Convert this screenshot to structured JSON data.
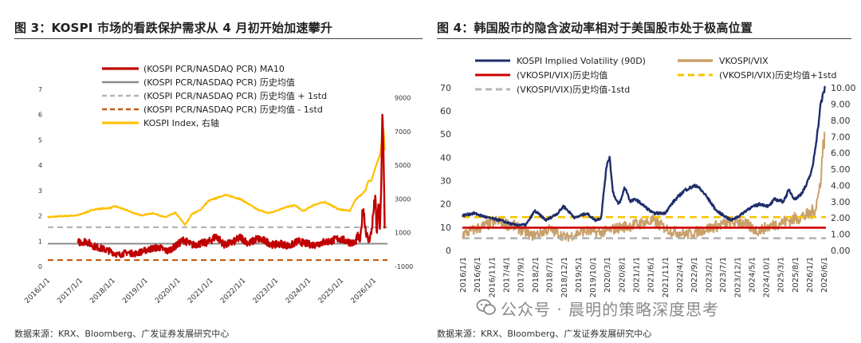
{
  "left": {
    "title": "图 3：KOSPI 市场的看跌保护需求从 4 月初开始加速攀升",
    "source": "数据来源：KRX、Bloomberg、广发证券发展研究中心",
    "legend": [
      "(KOSPI PCR/NASDAQ PCR)  MA10",
      "(KOSPI PCR/NASDAQ PCR) 历史均值",
      "(KOSPI PCR/NASDAQ PCR) 历史均值 + 1std",
      "(KOSPI PCR/NASDAQ PCR) 历史均值 - 1std",
      "KOSPI Index, 右轴"
    ]
  },
  "right": {
    "title": "图 4：韩国股市的隐含波动率相对于美国股市处于极高位置",
    "source": "数据来源：KRX、Bloomberg、广发证券发展研究中心",
    "legend": [
      "KOSPI Implied Volatility (90D)",
      "VKOSPI/VIX",
      "(VKOSPI/VIX)历史均值",
      "(VKOSPI/VIX)历史均值+1std",
      "(VKOSPI/VIX)历史均值-1std"
    ]
  },
  "watermark": "公众号 · 晨明的策略深度思考",
  "colors": {
    "dark_red": "#c00000",
    "grey": "#8c8c8c",
    "light_grey": "#b4b4b4",
    "orange_dash": "#c55a11",
    "gold": "#ffc000",
    "navy": "#1f2d6b",
    "tan": "#c9a06a",
    "red": "#d00000",
    "yellow_dash": "#f5c400"
  },
  "chart_data": [
    {
      "type": "line",
      "x_ticks": [
        "2016/1/1",
        "2017/1/1",
        "2018/1/1",
        "2019/1/1",
        "2020/1/1",
        "2021/1/1",
        "2022/1/1",
        "2023/1/1",
        "2024/1/1",
        "2025/1/1",
        "2026/1/1"
      ],
      "y_left_ticks": [
        "0",
        "1",
        "2",
        "3",
        "4",
        "5",
        "6",
        "7"
      ],
      "y_left_lim": [
        0,
        7
      ],
      "y_right_ticks": [
        "-1000",
        "1000",
        "3000",
        "5000",
        "7000",
        "9000"
      ],
      "y_right_lim": [
        -1000,
        9500
      ],
      "x_start": "2016-01-01",
      "series": [
        {
          "name": "(KOSPI PCR/NASDAQ PCR)  MA10",
          "axis": "left",
          "x": [
            "2016-12-01",
            "2017-03-01",
            "2017-06-01",
            "2017-09-01",
            "2017-12-01",
            "2018-03-01",
            "2018-06-01",
            "2018-09-01",
            "2018-12-01",
            "2019-03-01",
            "2019-06-01",
            "2019-09-01",
            "2019-12-01",
            "2020-03-01",
            "2020-06-01",
            "2020-09-01",
            "2020-12-01",
            "2021-03-01",
            "2021-06-01",
            "2021-09-01",
            "2021-12-01",
            "2022-03-01",
            "2022-06-01",
            "2022-09-01",
            "2022-12-01",
            "2023-03-01",
            "2023-06-01",
            "2023-09-01",
            "2023-12-01",
            "2024-03-01",
            "2024-06-01",
            "2024-09-01",
            "2024-12-01",
            "2025-03-01",
            "2025-06-01",
            "2025-07-01",
            "2025-08-01",
            "2025-09-01",
            "2025-10-01",
            "2025-11-01",
            "2025-12-01",
            "2026-01-15",
            "2026-02-01",
            "2026-02-20",
            "2026-03-10",
            "2026-03-25",
            "2026-04-05",
            "2026-04-15",
            "2026-04-25",
            "2026-05-01"
          ],
          "values": [
            0.95,
            1.0,
            0.8,
            0.7,
            0.6,
            0.45,
            0.55,
            0.5,
            0.6,
            0.7,
            0.75,
            0.6,
            0.8,
            1.05,
            0.85,
            0.9,
            0.95,
            1.2,
            0.85,
            0.95,
            1.15,
            0.9,
            1.1,
            1.0,
            0.85,
            0.9,
            0.8,
            1.0,
            0.9,
            0.85,
            0.95,
            1.0,
            1.1,
            1.0,
            0.9,
            1.2,
            1.0,
            2.4,
            1.4,
            1.0,
            1.3,
            2.8,
            1.2,
            2.6,
            1.4,
            3.6,
            5.9,
            4.8,
            3.0,
            1.5
          ]
        },
        {
          "name": "(KOSPI PCR/NASDAQ PCR) 历史均值",
          "axis": "left",
          "values": [
            0.9
          ]
        },
        {
          "name": "(KOSPI PCR/NASDAQ PCR) 历史均值 + 1std",
          "axis": "left",
          "values": [
            1.55
          ]
        },
        {
          "name": "(KOSPI PCR/NASDAQ PCR) 历史均值 - 1std",
          "axis": "left",
          "values": [
            0.25
          ]
        },
        {
          "name": "KOSPI Index, 右轴",
          "axis": "right",
          "x": [
            "2016-01-01",
            "2016-06-01",
            "2016-12-01",
            "2017-06-01",
            "2017-12-01",
            "2018-01-25",
            "2018-06-01",
            "2018-10-30",
            "2019-04-01",
            "2019-08-05",
            "2019-12-01",
            "2020-03-19",
            "2020-06-01",
            "2020-09-01",
            "2020-12-01",
            "2021-06-01",
            "2021-09-01",
            "2021-12-01",
            "2022-06-01",
            "2022-09-30",
            "2022-12-01",
            "2023-04-01",
            "2023-07-31",
            "2023-10-31",
            "2024-03-01",
            "2024-07-01",
            "2024-12-09",
            "2025-04-09",
            "2025-06-01",
            "2025-08-01",
            "2025-10-01",
            "2025-11-01",
            "2025-12-01",
            "2026-01-15",
            "2026-02-15",
            "2026-03-10",
            "2026-04-01",
            "2026-04-20",
            "2026-05-01"
          ],
          "values": [
            1920,
            1980,
            2030,
            2380,
            2470,
            2570,
            2330,
            2030,
            2150,
            1910,
            2180,
            1460,
            2110,
            2330,
            2870,
            3240,
            3130,
            2980,
            2390,
            2160,
            2240,
            2480,
            2630,
            2270,
            2660,
            2820,
            2370,
            2300,
            2920,
            3200,
            3550,
            4100,
            4050,
            4800,
            5300,
            5600,
            6600,
            7100,
            5900
          ]
        }
      ]
    },
    {
      "type": "line",
      "x_ticks": [
        "2016/1/1",
        "2016/6/1",
        "2016/11/1",
        "2017/4/1",
        "2017/9/1",
        "2018/2/1",
        "2018/7/1",
        "2018/12/1",
        "2019/5/1",
        "2019/10/1",
        "2020/3/1",
        "2020/8/1",
        "2021/1/1",
        "2021/6/1",
        "2021/11/1",
        "2022/4/1",
        "2022/9/1",
        "2023/2/1",
        "2023/7/1",
        "2023/12/1",
        "2024/5/1",
        "2024/10/1",
        "2025/3/1",
        "2025/8/1",
        "2026/1/1",
        "2026/6/1"
      ],
      "y_left_ticks": [
        "0",
        "10",
        "20",
        "30",
        "40",
        "50",
        "60",
        "70"
      ],
      "y_left_lim": [
        0,
        72
      ],
      "y_right_ticks": [
        "0.00",
        "1.00",
        "2.00",
        "3.00",
        "4.00",
        "5.00",
        "6.00",
        "7.00",
        "8.00",
        "9.00",
        "10.00"
      ],
      "y_right_lim": [
        0,
        10.3
      ],
      "x_start": "2016-01-01",
      "series": [
        {
          "name": "KOSPI Implied Volatility (90D)",
          "axis": "left",
          "x": [
            "2016-01-01",
            "2016-05-01",
            "2016-10-01",
            "2017-02-01",
            "2017-07-01",
            "2017-11-01",
            "2018-02-01",
            "2018-06-01",
            "2018-10-01",
            "2018-12-01",
            "2019-04-01",
            "2019-08-01",
            "2019-11-01",
            "2020-01-01",
            "2020-02-10",
            "2020-03-05",
            "2020-04-01",
            "2020-05-01",
            "2020-06-01",
            "2020-07-01",
            "2020-08-01",
            "2020-09-01",
            "2020-10-01",
            "2020-11-01",
            "2021-01-01",
            "2021-04-01",
            "2021-07-01",
            "2021-11-01",
            "2022-02-01",
            "2022-06-01",
            "2022-10-01",
            "2023-01-01",
            "2023-05-01",
            "2023-10-01",
            "2024-01-01",
            "2024-04-01",
            "2024-08-01",
            "2024-11-01",
            "2025-01-01",
            "2025-04-01",
            "2025-06-01",
            "2025-08-01",
            "2025-10-01",
            "2025-12-01",
            "2026-02-01",
            "2026-03-01",
            "2026-04-01",
            "2026-05-01",
            "2026-06-15"
          ],
          "values": [
            15,
            16,
            14,
            13,
            11,
            11,
            17,
            13,
            16,
            19,
            14,
            16,
            13,
            14,
            30,
            38,
            40,
            26,
            22,
            20,
            22,
            27,
            25,
            21,
            22,
            19,
            16,
            16,
            21,
            26,
            28,
            24,
            17,
            13,
            15,
            18,
            20,
            19,
            22,
            21,
            26,
            22,
            24,
            28,
            35,
            43,
            52,
            63,
            70
          ]
        },
        {
          "name": "VKOSPI/VIX",
          "axis": "right",
          "x": [
            "2016-01-01",
            "2016-07-01",
            "2017-01-01",
            "2017-07-01",
            "2018-01-01",
            "2018-07-01",
            "2019-01-01",
            "2019-07-01",
            "2020-01-01",
            "2020-07-01",
            "2021-01-01",
            "2021-07-01",
            "2022-01-01",
            "2022-07-01",
            "2023-01-01",
            "2023-07-01",
            "2024-01-01",
            "2024-07-01",
            "2025-01-01",
            "2025-07-01",
            "2026-01-01",
            "2026-03-01",
            "2026-04-15",
            "2026-05-15",
            "2026-06-10"
          ],
          "values": [
            1.0,
            1.4,
            1.8,
            1.5,
            0.9,
            1.3,
            0.8,
            1.2,
            1.1,
            1.4,
            1.6,
            1.8,
            1.2,
            1.0,
            1.3,
            1.6,
            1.8,
            1.2,
            1.6,
            1.9,
            2.2,
            2.5,
            3.6,
            5.5,
            7.3
          ]
        },
        {
          "name": "(VKOSPI/VIX)历史均值",
          "axis": "right",
          "values": [
            1.4
          ]
        },
        {
          "name": "(VKOSPI/VIX)历史均值+1std",
          "axis": "right",
          "values": [
            2.05
          ]
        },
        {
          "name": "(VKOSPI/VIX)历史均值-1std",
          "axis": "right",
          "values": [
            0.75
          ]
        }
      ]
    }
  ]
}
